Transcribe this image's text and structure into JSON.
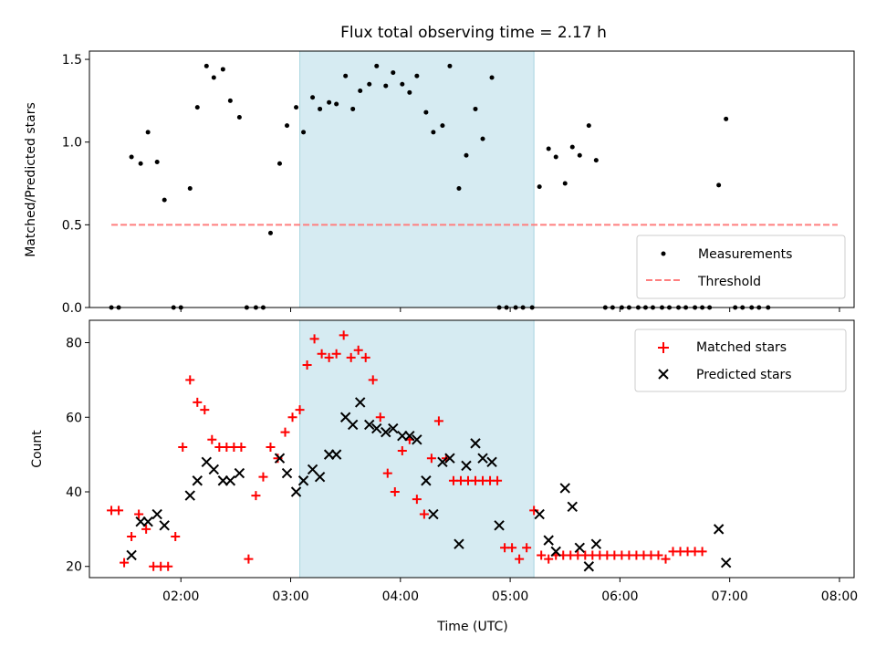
{
  "chart_data": [
    {
      "type": "scatter",
      "title": "Flux total observing time = 2.17 h",
      "xlabel": "",
      "ylabel": "Matched/Predicted stars",
      "xlim": [
        "01:10",
        "08:08"
      ],
      "ylim": [
        0,
        1.55
      ],
      "x_ticks": [
        "02:00",
        "03:00",
        "04:00",
        "05:00",
        "06:00",
        "07:00",
        "08:00"
      ],
      "x_tick_labels_shown": false,
      "y_ticks": [
        0.0,
        0.5,
        1.0,
        1.5
      ],
      "y_tick_labels": [
        "0.0",
        "0.5",
        "1.0",
        "1.5"
      ],
      "shaded_interval": {
        "start": "03:05",
        "end": "05:13",
        "color": "#add8e6"
      },
      "legend_placement": "lower right",
      "series": [
        {
          "name": "Measurements",
          "kind": "scatter",
          "marker": "dot",
          "color": "#000000",
          "points": [
            [
              "01:22",
              0.0
            ],
            [
              "01:26",
              0.0
            ],
            [
              "01:33",
              0.91
            ],
            [
              "01:38",
              0.87
            ],
            [
              "01:42",
              1.06
            ],
            [
              "01:47",
              0.88
            ],
            [
              "01:51",
              0.65
            ],
            [
              "01:56",
              0.0
            ],
            [
              "02:00",
              0.0
            ],
            [
              "02:05",
              0.72
            ],
            [
              "02:09",
              1.21
            ],
            [
              "02:14",
              1.46
            ],
            [
              "02:18",
              1.39
            ],
            [
              "02:23",
              1.44
            ],
            [
              "02:27",
              1.25
            ],
            [
              "02:32",
              1.15
            ],
            [
              "02:36",
              0.0
            ],
            [
              "02:41",
              0.0
            ],
            [
              "02:45",
              0.0
            ],
            [
              "02:49",
              0.45
            ],
            [
              "02:54",
              0.87
            ],
            [
              "02:58",
              1.1
            ],
            [
              "03:03",
              1.21
            ],
            [
              "03:07",
              1.06
            ],
            [
              "03:12",
              1.27
            ],
            [
              "03:16",
              1.2
            ],
            [
              "03:21",
              1.24
            ],
            [
              "03:25",
              1.23
            ],
            [
              "03:30",
              1.4
            ],
            [
              "03:34",
              1.2
            ],
            [
              "03:38",
              1.31
            ],
            [
              "03:43",
              1.35
            ],
            [
              "03:47",
              1.46
            ],
            [
              "03:52",
              1.34
            ],
            [
              "03:56",
              1.42
            ],
            [
              "04:01",
              1.35
            ],
            [
              "04:05",
              1.3
            ],
            [
              "04:09",
              1.4
            ],
            [
              "04:14",
              1.18
            ],
            [
              "04:18",
              1.06
            ],
            [
              "04:23",
              1.1
            ],
            [
              "04:27",
              1.46
            ],
            [
              "04:32",
              0.72
            ],
            [
              "04:36",
              0.92
            ],
            [
              "04:41",
              1.2
            ],
            [
              "04:45",
              1.02
            ],
            [
              "04:50",
              1.39
            ],
            [
              "04:54",
              0.0
            ],
            [
              "04:58",
              0.0
            ],
            [
              "05:03",
              0.0
            ],
            [
              "05:07",
              0.0
            ],
            [
              "05:12",
              0.0
            ],
            [
              "05:16",
              0.73
            ],
            [
              "05:21",
              0.96
            ],
            [
              "05:25",
              0.91
            ],
            [
              "05:30",
              0.75
            ],
            [
              "05:34",
              0.97
            ],
            [
              "05:38",
              0.92
            ],
            [
              "05:43",
              1.1
            ],
            [
              "05:47",
              0.89
            ],
            [
              "05:52",
              0.0
            ],
            [
              "05:56",
              0.0
            ],
            [
              "06:01",
              0.0
            ],
            [
              "06:05",
              0.0
            ],
            [
              "06:10",
              0.0
            ],
            [
              "06:14",
              0.0
            ],
            [
              "06:18",
              0.0
            ],
            [
              "06:23",
              0.0
            ],
            [
              "06:27",
              0.0
            ],
            [
              "06:32",
              0.0
            ],
            [
              "06:36",
              0.0
            ],
            [
              "06:41",
              0.0
            ],
            [
              "06:45",
              0.0
            ],
            [
              "06:49",
              0.0
            ],
            [
              "06:54",
              0.74
            ],
            [
              "06:58",
              1.14
            ],
            [
              "07:03",
              0.0
            ],
            [
              "07:07",
              0.0
            ],
            [
              "07:12",
              0.0
            ],
            [
              "07:16",
              0.0
            ],
            [
              "07:21",
              0.0
            ]
          ]
        },
        {
          "name": "Threshold",
          "kind": "line",
          "style": "dashed",
          "color": "#ff7f7f",
          "points": [
            [
              "01:22",
              0.5
            ],
            [
              "07:59",
              0.5
            ]
          ]
        }
      ]
    },
    {
      "type": "scatter",
      "title": "",
      "xlabel": "Time (UTC)",
      "ylabel": "Count",
      "xlim": [
        "01:10",
        "08:08"
      ],
      "ylim": [
        17,
        86
      ],
      "x_ticks": [
        "02:00",
        "03:00",
        "04:00",
        "05:00",
        "06:00",
        "07:00",
        "08:00"
      ],
      "x_tick_labels": [
        "02:00",
        "03:00",
        "04:00",
        "05:00",
        "06:00",
        "07:00",
        "08:00"
      ],
      "y_ticks": [
        20,
        40,
        60,
        80
      ],
      "y_tick_labels": [
        "20",
        "40",
        "60",
        "80"
      ],
      "shaded_interval": {
        "start": "03:05",
        "end": "05:13",
        "color": "#add8e6"
      },
      "legend_placement": "upper right",
      "series": [
        {
          "name": "Matched stars",
          "kind": "scatter",
          "marker": "plus",
          "color": "#ff0000",
          "points": [
            [
              "01:22",
              35
            ],
            [
              "01:26",
              35
            ],
            [
              "01:29",
              21
            ],
            [
              "01:33",
              28
            ],
            [
              "01:37",
              34
            ],
            [
              "01:41",
              30
            ],
            [
              "01:45",
              20
            ],
            [
              "01:49",
              20
            ],
            [
              "01:53",
              20
            ],
            [
              "01:57",
              28
            ],
            [
              "02:01",
              52
            ],
            [
              "02:05",
              70
            ],
            [
              "02:09",
              64
            ],
            [
              "02:13",
              62
            ],
            [
              "02:17",
              54
            ],
            [
              "02:21",
              52
            ],
            [
              "02:25",
              52
            ],
            [
              "02:29",
              52
            ],
            [
              "02:33",
              52
            ],
            [
              "02:37",
              22
            ],
            [
              "02:41",
              39
            ],
            [
              "02:45",
              44
            ],
            [
              "02:49",
              52
            ],
            [
              "02:53",
              49
            ],
            [
              "02:57",
              56
            ],
            [
              "03:01",
              60
            ],
            [
              "03:05",
              62
            ],
            [
              "03:09",
              74
            ],
            [
              "03:13",
              81
            ],
            [
              "03:17",
              77
            ],
            [
              "03:21",
              76
            ],
            [
              "03:25",
              77
            ],
            [
              "03:29",
              82
            ],
            [
              "03:33",
              76
            ],
            [
              "03:37",
              78
            ],
            [
              "03:41",
              76
            ],
            [
              "03:45",
              70
            ],
            [
              "03:49",
              60
            ],
            [
              "03:53",
              45
            ],
            [
              "03:57",
              40
            ],
            [
              "04:01",
              51
            ],
            [
              "04:05",
              54
            ],
            [
              "04:09",
              38
            ],
            [
              "04:13",
              34
            ],
            [
              "04:17",
              49
            ],
            [
              "04:21",
              59
            ],
            [
              "04:25",
              49
            ],
            [
              "04:29",
              43
            ],
            [
              "04:33",
              43
            ],
            [
              "04:37",
              43
            ],
            [
              "04:41",
              43
            ],
            [
              "04:45",
              43
            ],
            [
              "04:49",
              43
            ],
            [
              "04:53",
              43
            ],
            [
              "04:57",
              25
            ],
            [
              "05:01",
              25
            ],
            [
              "05:05",
              22
            ],
            [
              "05:09",
              25
            ],
            [
              "05:13",
              35
            ],
            [
              "05:17",
              23
            ],
            [
              "05:21",
              22
            ],
            [
              "05:25",
              23
            ],
            [
              "05:29",
              23
            ],
            [
              "05:33",
              23
            ],
            [
              "05:37",
              23
            ],
            [
              "05:41",
              23
            ],
            [
              "05:45",
              23
            ],
            [
              "05:49",
              23
            ],
            [
              "05:53",
              23
            ],
            [
              "05:57",
              23
            ],
            [
              "06:01",
              23
            ],
            [
              "06:05",
              23
            ],
            [
              "06:09",
              23
            ],
            [
              "06:13",
              23
            ],
            [
              "06:17",
              23
            ],
            [
              "06:21",
              23
            ],
            [
              "06:25",
              22
            ],
            [
              "06:29",
              24
            ],
            [
              "06:33",
              24
            ],
            [
              "06:37",
              24
            ],
            [
              "06:41",
              24
            ],
            [
              "06:45",
              24
            ]
          ]
        },
        {
          "name": "Predicted stars",
          "kind": "scatter",
          "marker": "x",
          "color": "#000000",
          "points": [
            [
              "01:33",
              23
            ],
            [
              "01:38",
              32
            ],
            [
              "01:42",
              32
            ],
            [
              "01:47",
              34
            ],
            [
              "01:51",
              31
            ],
            [
              "02:05",
              39
            ],
            [
              "02:09",
              43
            ],
            [
              "02:14",
              48
            ],
            [
              "02:18",
              46
            ],
            [
              "02:23",
              43
            ],
            [
              "02:27",
              43
            ],
            [
              "02:32",
              45
            ],
            [
              "02:54",
              49
            ],
            [
              "02:58",
              45
            ],
            [
              "03:03",
              40
            ],
            [
              "03:07",
              43
            ],
            [
              "03:12",
              46
            ],
            [
              "03:16",
              44
            ],
            [
              "03:21",
              50
            ],
            [
              "03:25",
              50
            ],
            [
              "03:30",
              60
            ],
            [
              "03:34",
              58
            ],
            [
              "03:38",
              64
            ],
            [
              "03:43",
              58
            ],
            [
              "03:47",
              57
            ],
            [
              "03:52",
              56
            ],
            [
              "03:56",
              57
            ],
            [
              "04:01",
              55
            ],
            [
              "04:05",
              55
            ],
            [
              "04:09",
              54
            ],
            [
              "04:14",
              43
            ],
            [
              "04:18",
              34
            ],
            [
              "04:23",
              48
            ],
            [
              "04:27",
              49
            ],
            [
              "04:32",
              26
            ],
            [
              "04:36",
              47
            ],
            [
              "04:41",
              53
            ],
            [
              "04:45",
              49
            ],
            [
              "04:50",
              48
            ],
            [
              "04:54",
              31
            ],
            [
              "05:16",
              34
            ],
            [
              "05:21",
              27
            ],
            [
              "05:25",
              24
            ],
            [
              "05:30",
              41
            ],
            [
              "05:34",
              36
            ],
            [
              "05:38",
              25
            ],
            [
              "05:43",
              20
            ],
            [
              "05:47",
              26
            ],
            [
              "06:54",
              30
            ],
            [
              "06:58",
              21
            ]
          ]
        }
      ]
    }
  ]
}
